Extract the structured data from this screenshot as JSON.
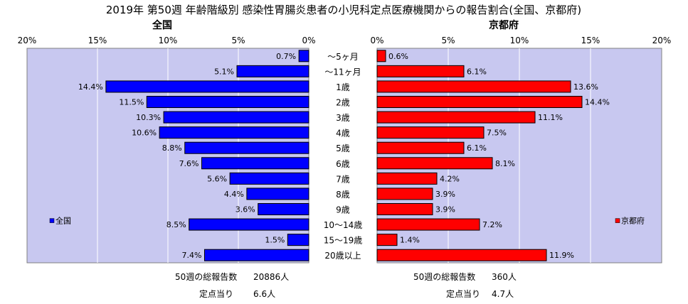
{
  "chart_data": {
    "type": "bar",
    "title": "2019年 第50週 年齢階級別 感染性胃腸炎患者の小児科定点医療機関からの報告割合(全国、京都府)",
    "categories": [
      "～5ヶ月",
      "～11ヶ月",
      "1歳",
      "2歳",
      "3歳",
      "4歳",
      "5歳",
      "6歳",
      "7歳",
      "8歳",
      "9歳",
      "10～14歳",
      "15～19歳",
      "20歳以上"
    ],
    "xlim": [
      0,
      20
    ],
    "tick_labels": [
      "0%",
      "5%",
      "10%",
      "15%",
      "20%"
    ],
    "grid": true,
    "panels": [
      {
        "name": "全国",
        "color": "#0000ff",
        "direction": "left",
        "legend": "全国",
        "legend_position": "bottom-left",
        "values": [
          0.7,
          5.1,
          14.4,
          11.5,
          10.3,
          10.6,
          8.8,
          7.6,
          5.6,
          4.4,
          3.6,
          8.5,
          1.5,
          7.4
        ],
        "value_labels": [
          "0.7%",
          "5.1%",
          "14.4%",
          "11.5%",
          "10.3%",
          "10.6%",
          "8.8%",
          "7.6%",
          "5.6%",
          "4.4%",
          "3.6%",
          "8.5%",
          "1.5%",
          "7.4%"
        ]
      },
      {
        "name": "京都府",
        "color": "#ff0000",
        "direction": "right",
        "legend": "京都府",
        "legend_position": "bottom-right",
        "values": [
          0.6,
          6.1,
          13.6,
          14.4,
          11.1,
          7.5,
          6.1,
          8.1,
          4.2,
          3.9,
          3.9,
          7.2,
          1.4,
          11.9
        ],
        "value_labels": [
          "0.6%",
          "6.1%",
          "13.6%",
          "14.4%",
          "11.1%",
          "7.5%",
          "6.1%",
          "8.1%",
          "4.2%",
          "3.9%",
          "3.9%",
          "7.2%",
          "1.4%",
          "11.9%"
        ]
      }
    ]
  },
  "footer": {
    "national": {
      "total_label": "50週の総報告数",
      "total_value": "20886人",
      "per_site_label": "定点当り",
      "per_site_value": "6.6人"
    },
    "kyoto": {
      "total_label": "50週の総報告数",
      "total_value": "360人",
      "per_site_label": "定点当り",
      "per_site_value": "4.7人"
    }
  },
  "colors": {
    "plot_background": "#c8c8f0",
    "grid": "#ffffff"
  }
}
